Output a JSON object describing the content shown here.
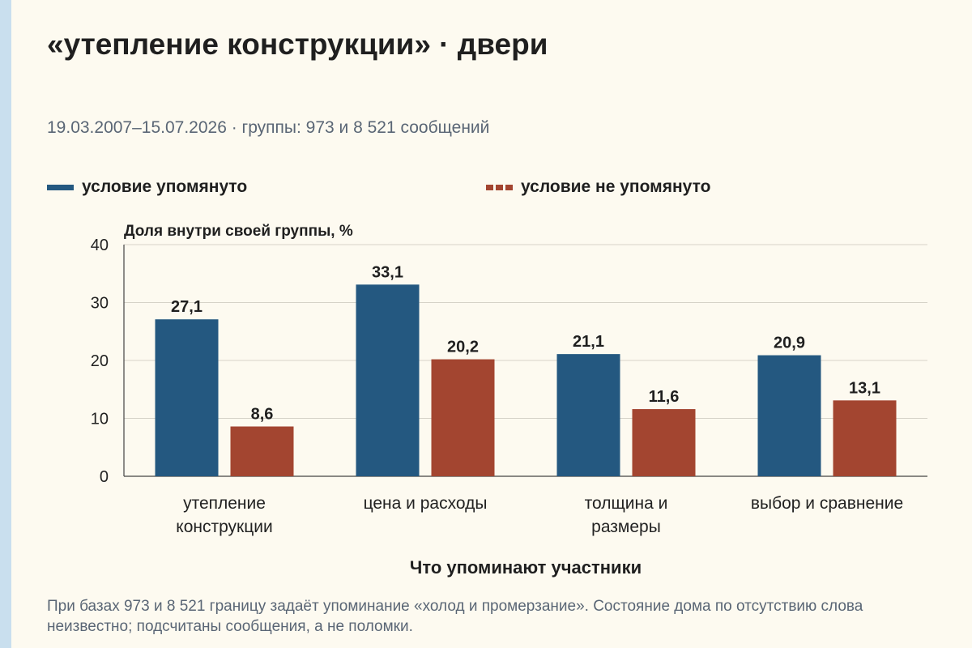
{
  "header": {
    "title": "«утепление конструкции» · двери",
    "subtitle": "19.03.2007–15.07.2026 · группы: 973 и 8 521 сообщений"
  },
  "legend": [
    {
      "label": "условие упомянуто",
      "color": "#245880",
      "style": "solid"
    },
    {
      "label": "условие не упомянуто",
      "color": "#a34530",
      "style": "dashed"
    }
  ],
  "footnote": "При базах 973 и 8 521 границу задаёт упоминание «холод и промерзание». Состояние дома по отсутствию слова неизвестно; подсчитаны сообщения, а не поломки.",
  "chart_data": {
    "type": "bar",
    "ylabel": "Доля внутри своей группы, %",
    "xlabel": "Что упоминают участники",
    "ylim": [
      0,
      40
    ],
    "yticks": [
      "0",
      "10",
      "20",
      "30",
      "40"
    ],
    "grid": true,
    "legend_position": "top",
    "categories": [
      [
        "утепление",
        "конструкции"
      ],
      [
        "цена и расходы"
      ],
      [
        "толщина и",
        "размеры"
      ],
      [
        "выбор и сравнение"
      ]
    ],
    "series": [
      {
        "name": "условие упомянуто",
        "color": "#245880",
        "values": [
          27.1,
          33.1,
          21.1,
          20.9
        ],
        "labels": [
          "27,1",
          "33,1",
          "21,1",
          "20,9"
        ]
      },
      {
        "name": "условие не упомянуто",
        "color": "#a34530",
        "values": [
          8.6,
          20.2,
          11.6,
          13.1
        ],
        "labels": [
          "8,6",
          "20,2",
          "11,6",
          "13,1"
        ]
      }
    ]
  }
}
